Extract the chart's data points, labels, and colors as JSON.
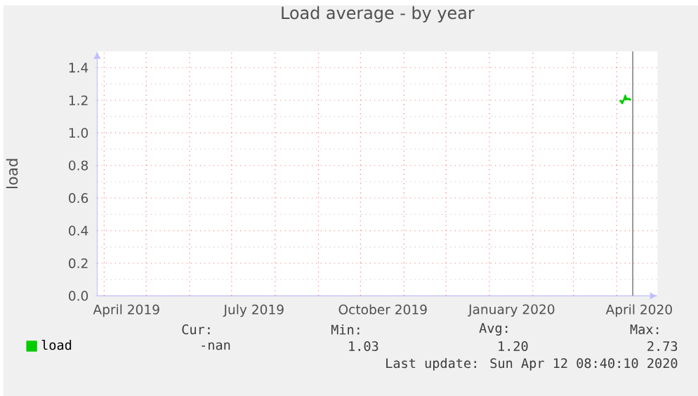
{
  "chart_data": {
    "type": "line",
    "title": "Load average - by year",
    "ylabel": "load",
    "x": [
      "2020-04-03",
      "2020-04-05",
      "2020-04-07",
      "2020-04-08",
      "2020-04-10",
      "2020-04-11"
    ],
    "series": [
      {
        "name": "load",
        "color": "#00cc00",
        "values": [
          1.2,
          1.18,
          1.23,
          1.21,
          1.21,
          1.2
        ]
      }
    ],
    "xlim": [
      "2019-03-27",
      "2020-04-30"
    ],
    "xticks": [
      {
        "value": "2019-04-17",
        "label": "April 2019"
      },
      {
        "value": "2019-07-17",
        "label": "July 2019"
      },
      {
        "value": "2019-10-17",
        "label": "October 2019"
      },
      {
        "value": "2020-01-17",
        "label": "January 2020"
      },
      {
        "value": "2020-04-17",
        "label": "April 2020"
      },
      {
        "value": "2019-04-01",
        "label": null
      },
      {
        "value": "2019-05-01",
        "label": null
      },
      {
        "value": "2019-06-01",
        "label": null
      },
      {
        "value": "2019-07-01",
        "label": null
      },
      {
        "value": "2019-08-01",
        "label": null
      },
      {
        "value": "2019-09-01",
        "label": null
      },
      {
        "value": "2019-10-01",
        "label": null
      },
      {
        "value": "2019-11-01",
        "label": null
      },
      {
        "value": "2019-12-01",
        "label": null
      },
      {
        "value": "2020-01-01",
        "label": null
      },
      {
        "value": "2020-02-01",
        "label": null
      },
      {
        "value": "2020-03-01",
        "label": null
      },
      {
        "value": "2020-04-01",
        "label": null
      }
    ],
    "ylim": [
      0,
      1.5
    ],
    "yticks": [
      {
        "value": 0,
        "label": "0.0"
      },
      {
        "value": 0.2,
        "label": "0.2"
      },
      {
        "value": 0.4,
        "label": "0.4"
      },
      {
        "value": 0.6,
        "label": "0.6"
      },
      {
        "value": 0.8,
        "label": "0.8"
      },
      {
        "value": 1.0,
        "label": "1.0"
      },
      {
        "value": 1.2,
        "label": "1.2"
      },
      {
        "value": 1.4,
        "label": "1.4"
      }
    ],
    "ref_lines": [
      {
        "axis": "x",
        "value": "2020-04-12T08:40",
        "color": "#808080"
      }
    ],
    "grid": true,
    "legend": "bottom left",
    "annotations": [
      "Cur:",
      "Min:",
      "Avg:",
      "Max:",
      "-nan",
      "1.03",
      "1.20",
      "2.73",
      "Last update: Sun Apr 12 08:40:10 2020"
    ]
  }
}
